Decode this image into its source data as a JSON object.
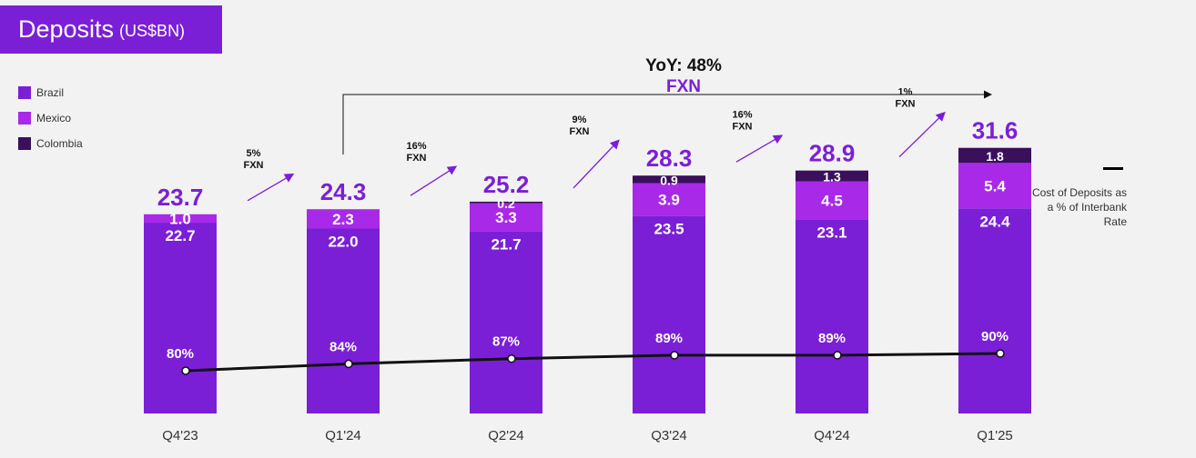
{
  "title": {
    "main": "Deposits",
    "unit": "(US$BN)"
  },
  "legend": [
    {
      "label": "Brazil",
      "color": "#7b1fd6"
    },
    {
      "label": "Mexico",
      "color": "#a929e8"
    },
    {
      "label": "Colombia",
      "color": "#3a0f5c"
    }
  ],
  "rate_legend": "Cost of Deposits as a % of Interbank Rate",
  "yoy": {
    "label": "YoY: 48%",
    "sub": "FXN"
  },
  "chart_data": {
    "type": "bar",
    "categories": [
      "Q4'23",
      "Q1'24",
      "Q2'24",
      "Q3'24",
      "Q4'24",
      "Q1'25"
    ],
    "series": [
      {
        "name": "Brazil",
        "values": [
          22.7,
          22.0,
          21.7,
          23.5,
          23.1,
          24.4
        ],
        "labels": [
          "22.7",
          "22.0",
          "21.7",
          "23.5",
          "23.1",
          "24.4"
        ]
      },
      {
        "name": "Mexico",
        "values": [
          1.0,
          2.3,
          3.3,
          3.9,
          4.5,
          5.4
        ],
        "labels": [
          "1.0",
          "2.3",
          "3.3",
          "3.9",
          "4.5",
          "5.4"
        ]
      },
      {
        "name": "Colombia",
        "values": [
          0,
          0,
          0.2,
          0.9,
          1.3,
          1.8
        ],
        "labels": [
          "",
          "",
          "0.2",
          "0.9",
          "1.3",
          "1.8"
        ]
      }
    ],
    "totals": [
      "23.7",
      "24.3",
      "25.2",
      "28.3",
      "28.9",
      "31.6"
    ],
    "line": {
      "name": "Cost of Deposits as a % of Interbank Rate",
      "values": [
        80,
        84,
        87,
        89,
        89,
        90
      ],
      "labels": [
        "80%",
        "84%",
        "87%",
        "89%",
        "89%",
        "90%"
      ]
    },
    "growth": [
      {
        "pct": "5%",
        "sub": "FXN"
      },
      {
        "pct": "16%",
        "sub": "FXN"
      },
      {
        "pct": "9%",
        "sub": "FXN"
      },
      {
        "pct": "16%",
        "sub": "FXN"
      },
      {
        "pct": "1%",
        "sub": "FXN"
      }
    ]
  }
}
